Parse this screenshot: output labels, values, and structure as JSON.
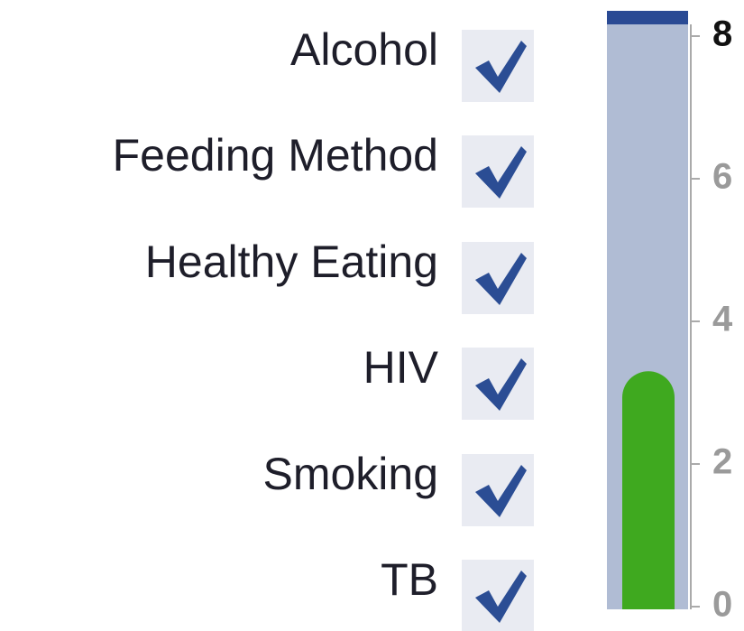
{
  "items": [
    {
      "label": "Alcohol",
      "checked": true
    },
    {
      "label": "Feeding Method",
      "checked": true
    },
    {
      "label": "Healthy Eating",
      "checked": true
    },
    {
      "label": "HIV",
      "checked": true
    },
    {
      "label": "Smoking",
      "checked": true
    },
    {
      "label": "TB",
      "checked": true
    }
  ],
  "gauge": {
    "value": 3.3,
    "target": 8,
    "ylim": [
      0,
      8
    ],
    "yticks": [
      0,
      2,
      4,
      6,
      8
    ],
    "color": "#3fa91f",
    "background": "#b0bcd4",
    "target_color": "#2a4a94"
  }
}
